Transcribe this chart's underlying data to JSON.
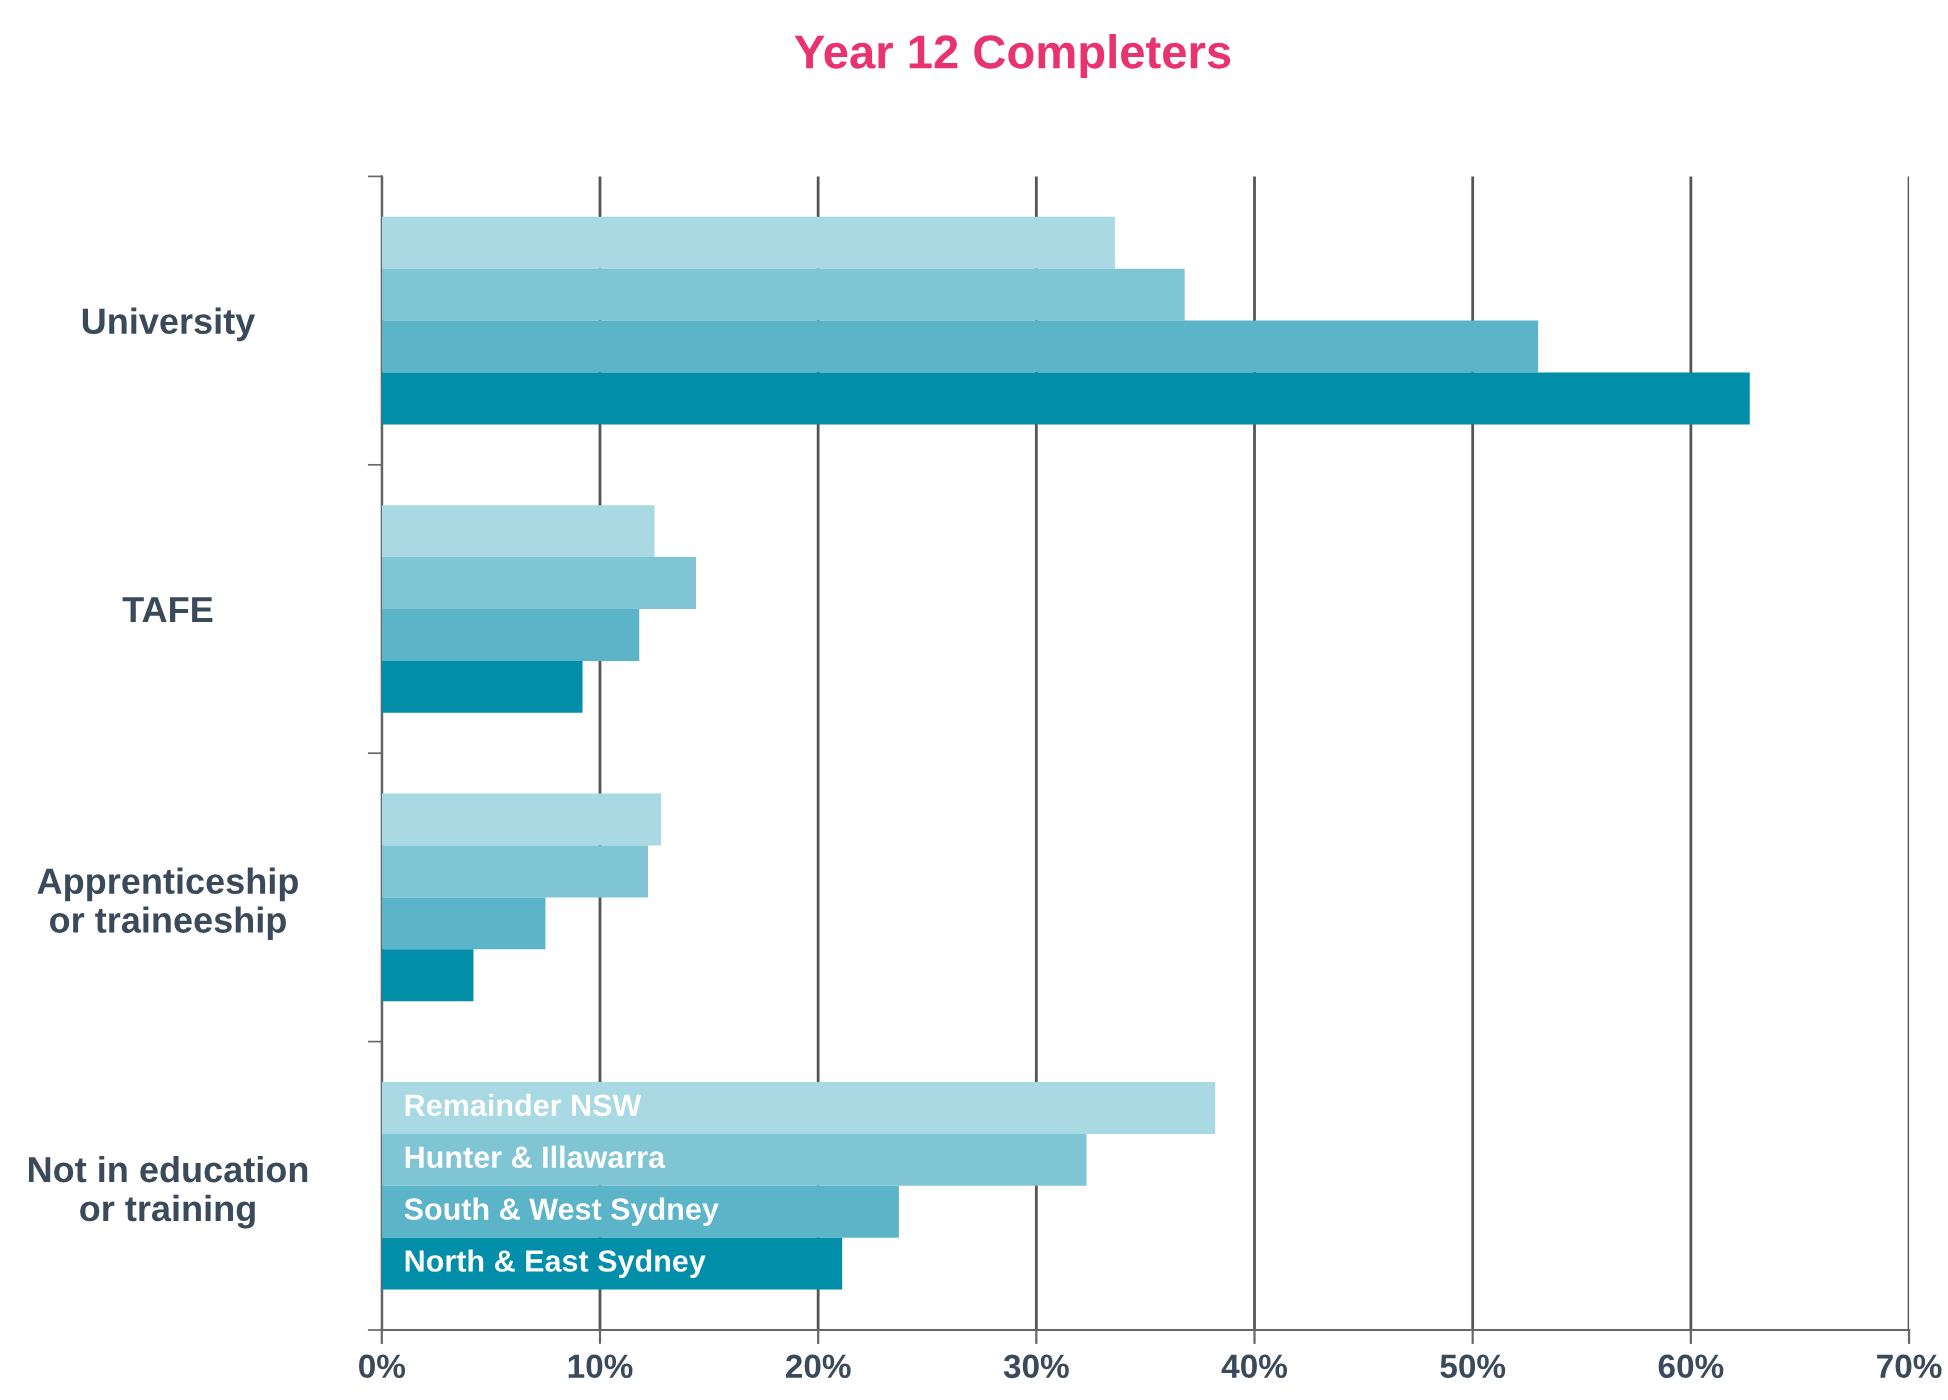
{
  "chart_data": {
    "type": "bar",
    "orientation": "horizontal",
    "title": "Year 12 Completers",
    "categories": [
      "University",
      "TAFE",
      "Apprenticeship\nor traineeship",
      "Not in education\nor training"
    ],
    "series": [
      {
        "name": "Remainder NSW",
        "color": "#a9d9e2",
        "values": [
          33.6,
          12.5,
          12.8,
          38.2
        ]
      },
      {
        "name": "Hunter & Illawarra",
        "color": "#80c5d4",
        "values": [
          36.8,
          14.4,
          12.2,
          32.3
        ]
      },
      {
        "name": "South & West Sydney",
        "color": "#5bb4c7",
        "values": [
          53.0,
          11.8,
          7.5,
          23.7
        ]
      },
      {
        "name": "North & East Sydney",
        "color": "#008ea8",
        "values": [
          62.7,
          9.2,
          4.2,
          21.1
        ]
      }
    ],
    "xlim": [
      0,
      70
    ],
    "xticks": [
      {
        "value": 0,
        "label": "0%"
      },
      {
        "value": 10,
        "label": "10%"
      },
      {
        "value": 20,
        "label": "20%"
      },
      {
        "value": 30,
        "label": "30%"
      },
      {
        "value": 40,
        "label": "40%"
      },
      {
        "value": 50,
        "label": "50%"
      },
      {
        "value": 60,
        "label": "60%"
      },
      {
        "value": 70,
        "label": "70%"
      }
    ],
    "grid": "x",
    "legend": false
  }
}
